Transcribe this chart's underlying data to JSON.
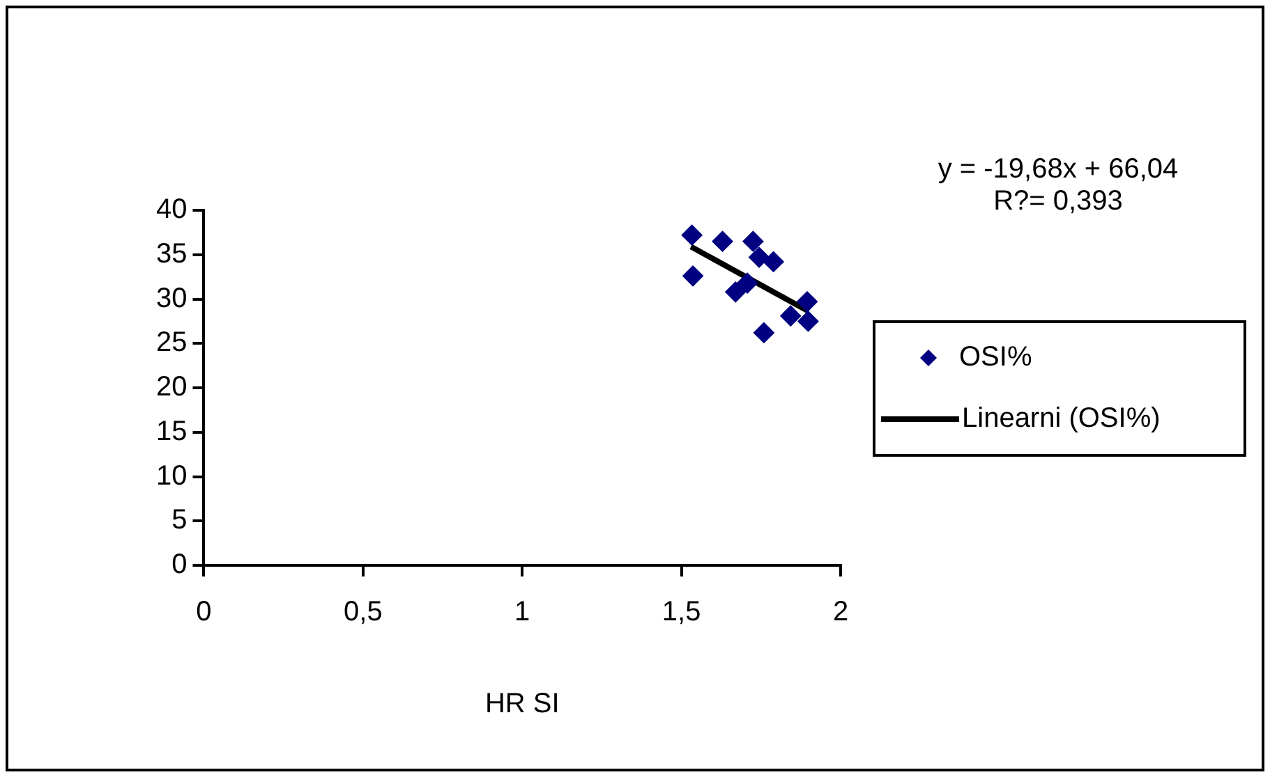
{
  "chart_data": {
    "type": "scatter",
    "xlabel": "HR SI",
    "annotations": [
      "y = -19,68x + 66,04",
      "R?= 0,393"
    ],
    "xlim": [
      0,
      2
    ],
    "ylim": [
      0,
      40
    ],
    "xticks": [
      0,
      {
        "value": 0.5,
        "label": "0,5"
      },
      1,
      {
        "value": 1.5,
        "label": "1,5"
      },
      2
    ],
    "yticks": [
      0,
      5,
      10,
      15,
      20,
      25,
      30,
      35,
      40
    ],
    "legend": "right",
    "series": [
      {
        "name": "OSI%",
        "type": "scatter",
        "marker": "diamond",
        "color": "#000080",
        "x": [
          1.533,
          1.629,
          1.725,
          1.744,
          1.789,
          1.536,
          1.707,
          1.67,
          1.895,
          1.843,
          1.898,
          1.759
        ],
        "values": [
          37.2,
          36.5,
          36.5,
          34.7,
          34.2,
          32.6,
          31.8,
          30.8,
          29.7,
          28.1,
          27.5,
          26.2
        ]
      },
      {
        "name": "Linearni (OSI%)",
        "type": "line",
        "marker": "none",
        "color": "#000000",
        "x": [
          1.53,
          1.9
        ],
        "values": [
          35.9,
          28.6
        ]
      }
    ]
  }
}
